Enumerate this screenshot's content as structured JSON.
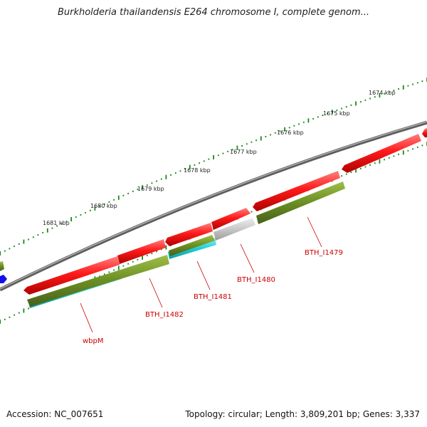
{
  "title": "Burkholderia thailandensis E264 chromosome I, complete genom...",
  "footer": {
    "accession": "Accession: NC_007651",
    "summary": "Topology: circular; Length: 3,809,201 bp; Genes: 3,337"
  },
  "scale_labels": [
    "1674 kbp",
    "1675 kbp",
    "1676 kbp",
    "1677 kbp",
    "1678 kbp",
    "1679 kbp",
    "1680 kbp",
    "1681 kbp"
  ],
  "gene_labels": [
    "BTH_I1479",
    "BTH_I1480",
    "BTH_I1481",
    "BTH_I1482",
    "wbpM"
  ],
  "colors": {
    "backbone": "#7a7a7a",
    "forward_cds": "#ff1a1a",
    "reverse_olive": "#6b8e23",
    "reverse_cyan": "#1ecfd6",
    "reverse_grey": "#c8c8c8",
    "blue_feature": "#1010ee",
    "ticks": "#1a8a1a",
    "label_red": "#cc0000"
  }
}
